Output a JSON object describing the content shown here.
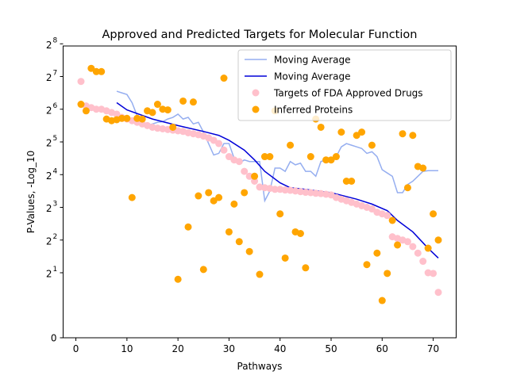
{
  "chart_data": {
    "type": "scatter",
    "title": "Approved and Predicted Targets for Molecular Function",
    "xlabel": "Pathways",
    "ylabel": "P-Values, -Log_10",
    "xlim": [
      -2.5,
      74.5
    ],
    "y_scale": "log2-ish with 0",
    "x_ticks": [
      "0",
      "10",
      "20",
      "30",
      "40",
      "50",
      "60",
      "70"
    ],
    "y_ticks": [
      {
        "label": "0",
        "exp": null
      },
      {
        "label": "1",
        "exp": 1
      },
      {
        "label": "2",
        "exp": 2
      },
      {
        "label": "3",
        "exp": 3
      },
      {
        "label": "4",
        "exp": 4
      },
      {
        "label": "5",
        "exp": 5
      },
      {
        "label": "6",
        "exp": 6
      },
      {
        "label": "7",
        "exp": 7
      },
      {
        "label": "8",
        "exp": 8
      }
    ],
    "y_base": "2",
    "legend": {
      "position": "upper-right",
      "entries": [
        {
          "label": "Moving Average",
          "kind": "line",
          "color": "#95aef0"
        },
        {
          "label": "Moving Average",
          "kind": "line",
          "color": "#0000d8"
        },
        {
          "label": "Targets of FDA Approved Drugs",
          "kind": "dot",
          "color": "#ffc0cb"
        },
        {
          "label": "Inferred Proteins",
          "kind": "dot",
          "color": "#ffa500"
        }
      ]
    },
    "series": [
      {
        "name": "Targets of FDA Approved Drugs",
        "kind": "scatter",
        "color": "#ffc0cb",
        "points": [
          [
            1,
            6.85
          ],
          [
            2,
            6.1
          ],
          [
            3,
            6.05
          ],
          [
            4,
            6.0
          ],
          [
            5,
            6.0
          ],
          [
            6,
            5.95
          ],
          [
            7,
            5.9
          ],
          [
            8,
            5.85
          ],
          [
            9,
            5.75
          ],
          [
            10,
            5.7
          ],
          [
            11,
            5.65
          ],
          [
            12,
            5.6
          ],
          [
            13,
            5.55
          ],
          [
            14,
            5.5
          ],
          [
            15,
            5.45
          ],
          [
            16,
            5.42
          ],
          [
            17,
            5.4
          ],
          [
            18,
            5.38
          ],
          [
            19,
            5.36
          ],
          [
            20,
            5.34
          ],
          [
            21,
            5.32
          ],
          [
            22,
            5.28
          ],
          [
            23,
            5.25
          ],
          [
            24,
            5.22
          ],
          [
            25,
            5.18
          ],
          [
            26,
            5.12
          ],
          [
            27,
            5.05
          ],
          [
            28,
            4.95
          ],
          [
            29,
            4.75
          ],
          [
            30,
            4.55
          ],
          [
            31,
            4.45
          ],
          [
            32,
            4.4
          ],
          [
            33,
            4.1
          ],
          [
            34,
            3.95
          ],
          [
            35,
            3.8
          ],
          [
            36,
            3.62
          ],
          [
            37,
            3.6
          ],
          [
            38,
            3.58
          ],
          [
            39,
            3.55
          ],
          [
            40,
            3.55
          ],
          [
            41,
            3.53
          ],
          [
            42,
            3.52
          ],
          [
            43,
            3.5
          ],
          [
            44,
            3.48
          ],
          [
            45,
            3.46
          ],
          [
            46,
            3.45
          ],
          [
            47,
            3.43
          ],
          [
            48,
            3.42
          ],
          [
            49,
            3.4
          ],
          [
            50,
            3.38
          ],
          [
            51,
            3.3
          ],
          [
            52,
            3.25
          ],
          [
            53,
            3.2
          ],
          [
            54,
            3.15
          ],
          [
            55,
            3.1
          ],
          [
            56,
            3.05
          ],
          [
            57,
            3.0
          ],
          [
            58,
            2.95
          ],
          [
            59,
            2.85
          ],
          [
            60,
            2.8
          ],
          [
            61,
            2.75
          ],
          [
            62,
            2.1
          ],
          [
            63,
            2.05
          ],
          [
            64,
            2.0
          ],
          [
            65,
            1.95
          ],
          [
            66,
            1.8
          ],
          [
            67,
            1.6
          ],
          [
            68,
            1.35
          ],
          [
            69,
            1.0
          ],
          [
            70,
            0.98
          ],
          [
            71,
            0.4
          ]
        ]
      },
      {
        "name": "Inferred Proteins",
        "kind": "scatter",
        "color": "#ffa500",
        "points": [
          [
            1,
            6.15
          ],
          [
            2,
            5.95
          ],
          [
            3,
            7.25
          ],
          [
            4,
            7.15
          ],
          [
            5,
            7.15
          ],
          [
            6,
            5.7
          ],
          [
            7,
            5.65
          ],
          [
            8,
            5.68
          ],
          [
            9,
            5.72
          ],
          [
            10,
            5.72
          ],
          [
            11,
            3.3
          ],
          [
            12,
            5.72
          ],
          [
            13,
            5.7
          ],
          [
            14,
            5.95
          ],
          [
            15,
            5.9
          ],
          [
            16,
            6.15
          ],
          [
            17,
            6.0
          ],
          [
            18,
            5.98
          ],
          [
            19,
            5.45
          ],
          [
            20,
            0.8
          ],
          [
            21,
            6.25
          ],
          [
            22,
            2.4
          ],
          [
            23,
            6.22
          ],
          [
            24,
            3.35
          ],
          [
            25,
            1.1
          ],
          [
            26,
            3.45
          ],
          [
            27,
            3.2
          ],
          [
            28,
            3.3
          ],
          [
            29,
            6.95
          ],
          [
            30,
            2.25
          ],
          [
            31,
            3.1
          ],
          [
            32,
            1.95
          ],
          [
            33,
            3.45
          ],
          [
            34,
            1.65
          ],
          [
            35,
            3.95
          ],
          [
            36,
            0.95
          ],
          [
            37,
            4.55
          ],
          [
            38,
            4.55
          ],
          [
            39,
            5.95
          ],
          [
            40,
            2.8
          ],
          [
            41,
            1.45
          ],
          [
            42,
            4.9
          ],
          [
            43,
            2.25
          ],
          [
            44,
            2.2
          ],
          [
            45,
            1.15
          ],
          [
            46,
            4.55
          ],
          [
            47,
            5.7
          ],
          [
            48,
            5.45
          ],
          [
            49,
            4.45
          ],
          [
            50,
            4.45
          ],
          [
            51,
            4.55
          ],
          [
            52,
            5.3
          ],
          [
            53,
            3.8
          ],
          [
            54,
            3.8
          ],
          [
            55,
            5.2
          ],
          [
            56,
            5.3
          ],
          [
            57,
            1.25
          ],
          [
            58,
            4.9
          ],
          [
            59,
            1.6
          ],
          [
            60,
            0.15
          ],
          [
            61,
            0.98
          ],
          [
            62,
            2.6
          ],
          [
            63,
            1.85
          ],
          [
            64,
            5.25
          ],
          [
            65,
            3.6
          ],
          [
            66,
            5.2
          ],
          [
            67,
            4.25
          ],
          [
            68,
            4.2
          ],
          [
            69,
            1.75
          ],
          [
            70,
            2.8
          ],
          [
            71,
            2.0
          ]
        ]
      },
      {
        "name": "Moving Average",
        "kind": "line",
        "color": "#95aef0",
        "points": [
          [
            8,
            6.55
          ],
          [
            9,
            6.5
          ],
          [
            10,
            6.45
          ],
          [
            11,
            6.2
          ],
          [
            12,
            5.8
          ],
          [
            13,
            5.65
          ],
          [
            14,
            5.5
          ],
          [
            15,
            5.55
          ],
          [
            16,
            5.6
          ],
          [
            17,
            5.62
          ],
          [
            18,
            5.7
          ],
          [
            19,
            5.75
          ],
          [
            20,
            5.85
          ],
          [
            21,
            5.7
          ],
          [
            22,
            5.75
          ],
          [
            23,
            5.55
          ],
          [
            24,
            5.6
          ],
          [
            25,
            5.3
          ],
          [
            26,
            4.95
          ],
          [
            27,
            4.6
          ],
          [
            28,
            4.65
          ],
          [
            29,
            4.95
          ],
          [
            30,
            4.95
          ],
          [
            31,
            4.5
          ],
          [
            32,
            4.35
          ],
          [
            33,
            4.45
          ],
          [
            34,
            4.4
          ],
          [
            35,
            4.4
          ],
          [
            36,
            4.4
          ],
          [
            37,
            3.2
          ],
          [
            38,
            3.5
          ],
          [
            39,
            4.2
          ],
          [
            40,
            4.2
          ],
          [
            41,
            4.1
          ],
          [
            42,
            4.4
          ],
          [
            43,
            4.3
          ],
          [
            44,
            4.35
          ],
          [
            45,
            4.1
          ],
          [
            46,
            4.1
          ],
          [
            47,
            3.95
          ],
          [
            48,
            4.4
          ],
          [
            49,
            4.45
          ],
          [
            50,
            4.4
          ],
          [
            51,
            4.55
          ],
          [
            52,
            4.85
          ],
          [
            53,
            4.95
          ],
          [
            54,
            4.9
          ],
          [
            55,
            4.85
          ],
          [
            56,
            4.8
          ],
          [
            57,
            4.65
          ],
          [
            58,
            4.7
          ],
          [
            59,
            4.55
          ],
          [
            60,
            4.15
          ],
          [
            61,
            4.05
          ],
          [
            62,
            3.95
          ],
          [
            63,
            3.45
          ],
          [
            64,
            3.45
          ],
          [
            65,
            3.7
          ],
          [
            66,
            3.8
          ],
          [
            67,
            3.95
          ],
          [
            68,
            4.1
          ],
          [
            69,
            4.12
          ],
          [
            70,
            4.12
          ],
          [
            71,
            4.12
          ]
        ]
      },
      {
        "name": "Moving Average",
        "kind": "line",
        "color": "#0000d8",
        "points": [
          [
            8,
            6.2
          ],
          [
            10,
            5.98
          ],
          [
            15,
            5.7
          ],
          [
            20,
            5.5
          ],
          [
            25,
            5.32
          ],
          [
            28,
            5.2
          ],
          [
            30,
            5.05
          ],
          [
            33,
            4.75
          ],
          [
            35,
            4.45
          ],
          [
            37,
            4.1
          ],
          [
            40,
            3.75
          ],
          [
            42,
            3.6
          ],
          [
            45,
            3.55
          ],
          [
            50,
            3.45
          ],
          [
            55,
            3.25
          ],
          [
            58,
            3.1
          ],
          [
            61,
            2.9
          ],
          [
            63,
            2.6
          ],
          [
            66,
            2.25
          ],
          [
            69,
            1.75
          ],
          [
            71,
            1.45
          ]
        ]
      }
    ]
  }
}
